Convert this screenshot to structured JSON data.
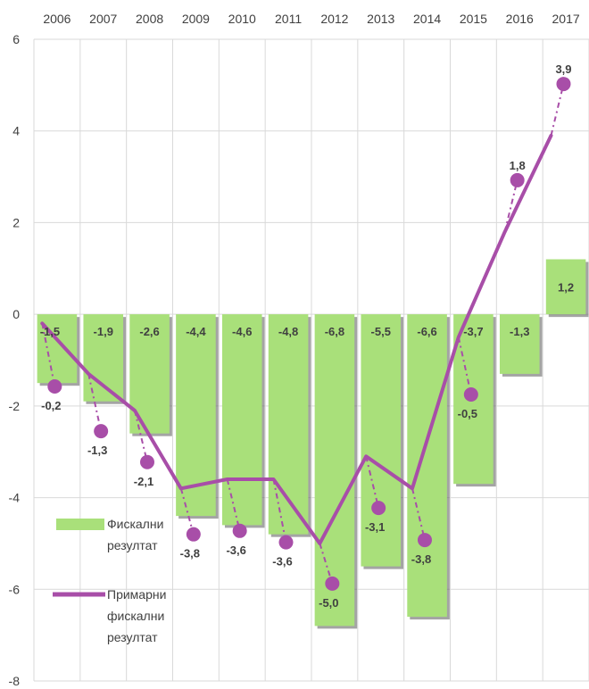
{
  "chart_data": {
    "type": "bar",
    "categories": [
      "2006",
      "2007",
      "2008",
      "2009",
      "2010",
      "2011",
      "2012",
      "2013",
      "2014",
      "2015",
      "2016",
      "2017"
    ],
    "ylim": [
      -8,
      6
    ],
    "yticks": [
      6,
      4,
      2,
      0,
      -2,
      -4,
      -6,
      -8
    ],
    "grid": true,
    "legend_position": "left",
    "series": [
      {
        "name": "Фискални резултат",
        "type": "bar",
        "values": [
          -1.5,
          -1.9,
          -2.6,
          -4.4,
          -4.6,
          -4.8,
          -6.8,
          -5.5,
          -6.6,
          -3.7,
          -1.3,
          1.2
        ],
        "labels": [
          "-1,5",
          "-1,9",
          "-2,6",
          "-4,4",
          "-4,6",
          "-4,8",
          "-6,8",
          "-5,5",
          "-6,6",
          "-3,7",
          "-1,3",
          "1,2"
        ],
        "color": "#a9e07a"
      },
      {
        "name": "Примарни фискални резултат",
        "type": "line",
        "values": [
          -0.2,
          -1.3,
          -2.1,
          -3.8,
          -3.6,
          -3.6,
          -5.0,
          -3.1,
          -3.8,
          -0.5,
          1.8,
          3.9
        ],
        "labels": [
          "-0,2",
          "-1,3",
          "-2,1",
          "-3,8",
          "-3,6",
          "-3,6",
          "-5,0",
          "-3,1",
          "-3,8",
          "-0,5",
          "1,8",
          "3,9"
        ],
        "color": "#a84ea8"
      }
    ],
    "legend": {
      "bar_lines": [
        "Фискални",
        "резултат"
      ],
      "line_lines": [
        "Примарни",
        "фискални",
        "резултат"
      ]
    }
  }
}
